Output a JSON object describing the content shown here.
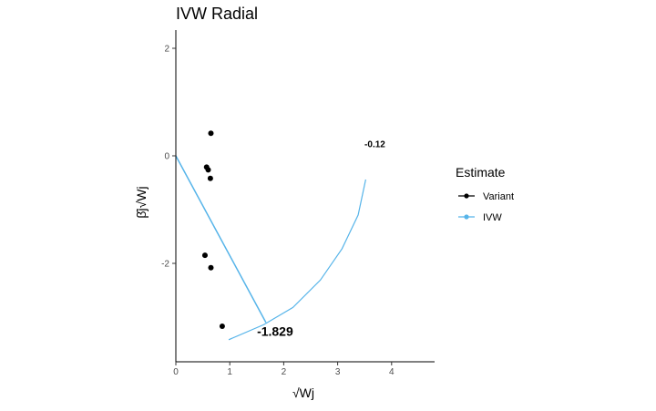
{
  "chart_data": {
    "type": "scatter",
    "title": "IVW Radial",
    "xlabel": "√Wj",
    "ylabel": "β̂j√Wj",
    "xlim": [
      0,
      4.8
    ],
    "ylim": [
      -3.85,
      2.3
    ],
    "x_ticks": [
      0,
      1,
      2,
      3,
      4
    ],
    "y_ticks": [
      -2,
      0,
      2
    ],
    "grid": false,
    "legend_placement": "right",
    "legend_title": "Estimate",
    "series": [
      {
        "name": "Variant",
        "color": "#000000",
        "points": [
          {
            "x": 0.65,
            "y": 0.42
          },
          {
            "x": 0.57,
            "y": -0.21
          },
          {
            "x": 0.6,
            "y": -0.26
          },
          {
            "x": 0.64,
            "y": -0.42
          },
          {
            "x": 0.54,
            "y": -1.85
          },
          {
            "x": 0.65,
            "y": -2.08
          },
          {
            "x": 0.86,
            "y": -3.17
          }
        ]
      },
      {
        "name": "IVW",
        "color": "#56B4E9",
        "ivw_line": [
          {
            "x": 0,
            "y": 0
          },
          {
            "x": 1.67,
            "y": -3.1
          }
        ],
        "arc": [
          {
            "x": 0.98,
            "y": -3.42
          },
          {
            "x": 1.63,
            "y": -3.14
          },
          {
            "x": 2.17,
            "y": -2.82
          },
          {
            "x": 2.68,
            "y": -2.31
          },
          {
            "x": 3.08,
            "y": -1.73
          },
          {
            "x": 3.38,
            "y": -1.1
          },
          {
            "x": 3.52,
            "y": -0.44
          }
        ]
      }
    ],
    "annotations": [
      {
        "text": "-1.829",
        "x": 1.84,
        "y": -3.35,
        "size": 14
      },
      {
        "text": "-0.12",
        "x": 3.69,
        "y": 0.16,
        "size": 10
      }
    ]
  }
}
